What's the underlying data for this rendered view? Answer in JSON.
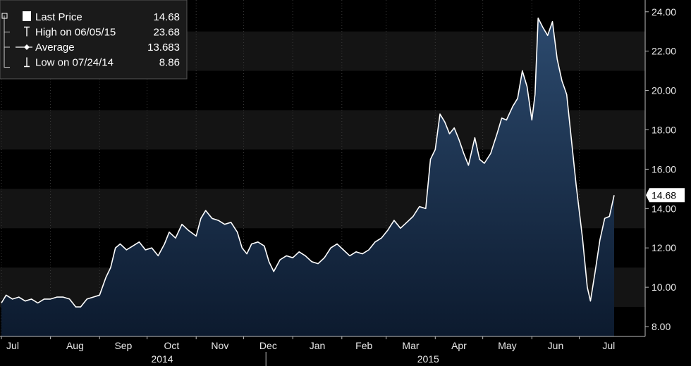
{
  "chart_data": {
    "type": "area",
    "x_start": "2014-07-01",
    "x_end": "2015-07-31",
    "ylim": [
      7.5,
      24.6
    ],
    "yticks": [
      "8.00",
      "10.00",
      "12.00",
      "14.00",
      "16.00",
      "18.00",
      "20.00",
      "22.00",
      "24.00"
    ],
    "ytick_values": [
      8,
      10,
      12,
      14,
      16,
      18,
      20,
      22,
      24
    ],
    "xticks": [
      {
        "label": "Jul",
        "date": "2014-07-01"
      },
      {
        "label": "Aug",
        "date": "2014-08-01"
      },
      {
        "label": "Sep",
        "date": "2014-09-01"
      },
      {
        "label": "Oct",
        "date": "2014-10-01"
      },
      {
        "label": "Nov",
        "date": "2014-11-01"
      },
      {
        "label": "Dec",
        "date": "2014-12-01"
      },
      {
        "label": "Jan",
        "date": "2015-01-01"
      },
      {
        "label": "Feb",
        "date": "2015-02-01"
      },
      {
        "label": "Mar",
        "date": "2015-03-01"
      },
      {
        "label": "Apr",
        "date": "2015-04-01"
      },
      {
        "label": "May",
        "date": "2015-05-01"
      },
      {
        "label": "Jun",
        "date": "2015-06-01"
      },
      {
        "label": "Jul",
        "date": "2015-07-01"
      }
    ],
    "years": [
      {
        "label": "2014",
        "date": "2014-10-15"
      },
      {
        "label": "2015",
        "date": "2015-04-01"
      }
    ],
    "year_divider_date": "2015-01-01",
    "last_value_label": "14.68",
    "legend": [
      {
        "marker": "square",
        "label": "Last Price",
        "value": "14.68"
      },
      {
        "marker": "high",
        "label": "High on 06/05/15",
        "value": "23.68"
      },
      {
        "marker": "average",
        "label": "Average",
        "value": "13.683"
      },
      {
        "marker": "low",
        "label": "Low on 07/24/14",
        "value": "8.86"
      }
    ],
    "series": [
      {
        "points": [
          [
            "2014-07-01",
            9.2
          ],
          [
            "2014-07-04",
            9.6
          ],
          [
            "2014-07-08",
            9.4
          ],
          [
            "2014-07-12",
            9.5
          ],
          [
            "2014-07-16",
            9.3
          ],
          [
            "2014-07-20",
            9.4
          ],
          [
            "2014-07-24",
            9.2
          ],
          [
            "2014-07-28",
            9.4
          ],
          [
            "2014-08-01",
            9.4
          ],
          [
            "2014-08-05",
            9.5
          ],
          [
            "2014-08-09",
            9.5
          ],
          [
            "2014-08-13",
            9.4
          ],
          [
            "2014-08-17",
            9.0
          ],
          [
            "2014-08-20",
            9.0
          ],
          [
            "2014-08-24",
            9.4
          ],
          [
            "2014-08-28",
            9.5
          ],
          [
            "2014-09-01",
            9.6
          ],
          [
            "2014-09-05",
            10.5
          ],
          [
            "2014-09-08",
            11.0
          ],
          [
            "2014-09-11",
            12.0
          ],
          [
            "2014-09-14",
            12.2
          ],
          [
            "2014-09-18",
            11.9
          ],
          [
            "2014-09-22",
            12.1
          ],
          [
            "2014-09-26",
            12.3
          ],
          [
            "2014-09-30",
            11.9
          ],
          [
            "2014-10-04",
            12.0
          ],
          [
            "2014-10-08",
            11.6
          ],
          [
            "2014-10-12",
            12.2
          ],
          [
            "2014-10-15",
            12.8
          ],
          [
            "2014-10-19",
            12.5
          ],
          [
            "2014-10-23",
            13.2
          ],
          [
            "2014-10-27",
            12.9
          ],
          [
            "2014-11-01",
            12.6
          ],
          [
            "2014-11-04",
            13.5
          ],
          [
            "2014-11-07",
            13.9
          ],
          [
            "2014-11-11",
            13.5
          ],
          [
            "2014-11-15",
            13.4
          ],
          [
            "2014-11-19",
            13.2
          ],
          [
            "2014-11-23",
            13.3
          ],
          [
            "2014-11-27",
            12.8
          ],
          [
            "2014-11-30",
            12.0
          ],
          [
            "2014-12-03",
            11.7
          ],
          [
            "2014-12-06",
            12.2
          ],
          [
            "2014-12-10",
            12.3
          ],
          [
            "2014-12-14",
            12.1
          ],
          [
            "2014-12-17",
            11.3
          ],
          [
            "2014-12-20",
            10.8
          ],
          [
            "2014-12-24",
            11.4
          ],
          [
            "2014-12-28",
            11.6
          ],
          [
            "2015-01-01",
            11.5
          ],
          [
            "2015-01-05",
            11.8
          ],
          [
            "2015-01-09",
            11.6
          ],
          [
            "2015-01-13",
            11.3
          ],
          [
            "2015-01-17",
            11.2
          ],
          [
            "2015-01-21",
            11.5
          ],
          [
            "2015-01-25",
            12.0
          ],
          [
            "2015-01-29",
            12.2
          ],
          [
            "2015-02-02",
            11.9
          ],
          [
            "2015-02-06",
            11.6
          ],
          [
            "2015-02-10",
            11.8
          ],
          [
            "2015-02-14",
            11.7
          ],
          [
            "2015-02-18",
            11.9
          ],
          [
            "2015-02-22",
            12.3
          ],
          [
            "2015-02-26",
            12.5
          ],
          [
            "2015-03-02",
            12.9
          ],
          [
            "2015-03-06",
            13.4
          ],
          [
            "2015-03-10",
            13.0
          ],
          [
            "2015-03-14",
            13.3
          ],
          [
            "2015-03-18",
            13.6
          ],
          [
            "2015-03-22",
            14.1
          ],
          [
            "2015-03-26",
            14.0
          ],
          [
            "2015-03-29",
            16.5
          ],
          [
            "2015-04-01",
            17.0
          ],
          [
            "2015-04-04",
            18.8
          ],
          [
            "2015-04-07",
            18.4
          ],
          [
            "2015-04-10",
            17.8
          ],
          [
            "2015-04-13",
            18.1
          ],
          [
            "2015-04-16",
            17.5
          ],
          [
            "2015-04-19",
            16.8
          ],
          [
            "2015-04-22",
            16.2
          ],
          [
            "2015-04-26",
            17.6
          ],
          [
            "2015-04-29",
            16.5
          ],
          [
            "2015-05-02",
            16.3
          ],
          [
            "2015-05-06",
            16.8
          ],
          [
            "2015-05-10",
            17.8
          ],
          [
            "2015-05-13",
            18.6
          ],
          [
            "2015-05-16",
            18.5
          ],
          [
            "2015-05-20",
            19.2
          ],
          [
            "2015-05-23",
            19.6
          ],
          [
            "2015-05-26",
            21.0
          ],
          [
            "2015-05-29",
            20.2
          ],
          [
            "2015-06-01",
            18.5
          ],
          [
            "2015-06-03",
            19.8
          ],
          [
            "2015-06-05",
            23.68
          ],
          [
            "2015-06-08",
            23.2
          ],
          [
            "2015-06-11",
            22.8
          ],
          [
            "2015-06-14",
            23.5
          ],
          [
            "2015-06-17",
            21.6
          ],
          [
            "2015-06-20",
            20.5
          ],
          [
            "2015-06-23",
            19.8
          ],
          [
            "2015-06-26",
            17.5
          ],
          [
            "2015-06-29",
            15.2
          ],
          [
            "2015-07-03",
            12.5
          ],
          [
            "2015-07-06",
            10.0
          ],
          [
            "2015-07-08",
            9.3
          ],
          [
            "2015-07-11",
            10.8
          ],
          [
            "2015-07-14",
            12.4
          ],
          [
            "2015-07-17",
            13.5
          ],
          [
            "2015-07-20",
            13.6
          ],
          [
            "2015-07-23",
            14.68
          ]
        ]
      }
    ]
  },
  "colors": {
    "line": "#ffffff",
    "area_top": "#2c4a6e",
    "area_bottom": "#0c1a2e",
    "band_dark": "#000000",
    "band_light": "#141414",
    "grid": "#3a3a3a",
    "legend_bg": "#1a1a1a"
  }
}
